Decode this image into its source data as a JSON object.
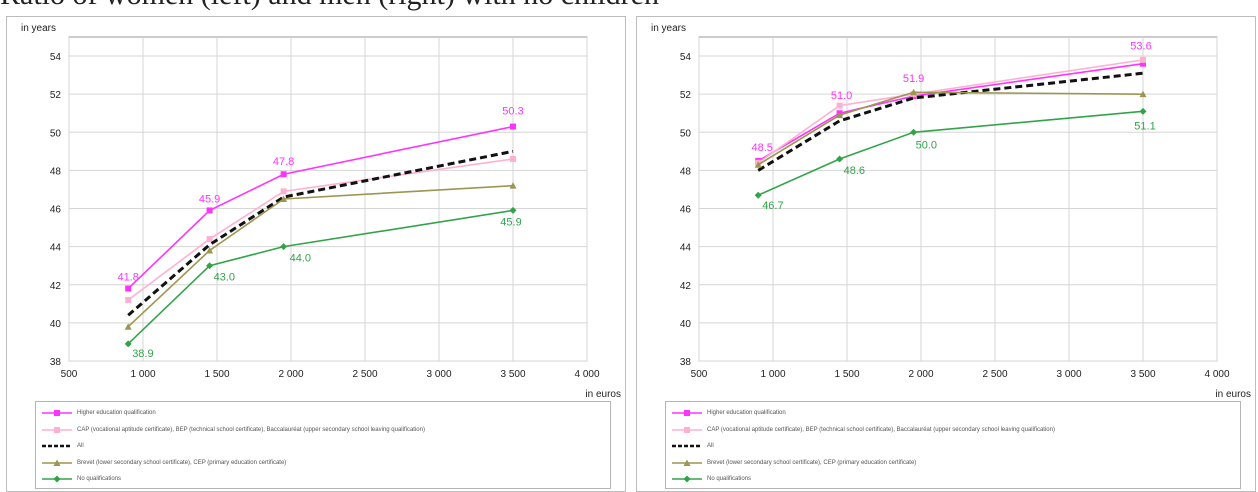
{
  "caption": "Ratio of women (left) and men (right) with no children",
  "legend_entries": [
    {
      "name": "Higher education qualification",
      "color": "#ff33ff",
      "dash": false,
      "marker": "square"
    },
    {
      "name": "CAP (vocational aptitude certificate), BEP (technical school certificate), Baccalauréat (upper secondary school leaving qualification)",
      "color": "#ffb0d0",
      "dash": false,
      "marker": "square"
    },
    {
      "name": "All",
      "color": "#111111",
      "dash": true,
      "marker": "none"
    },
    {
      "name": "Brevet (lower secondary school certificate), CEP (primary education certificate)",
      "color": "#9c9650",
      "dash": false,
      "marker": "triangle"
    },
    {
      "name": "No qualifications",
      "color": "#33a34a",
      "dash": false,
      "marker": "diamond"
    }
  ],
  "chart_data": [
    {
      "type": "line",
      "ylabel": "in years",
      "xlabel": "in euros",
      "xlim": [
        500,
        4000
      ],
      "ylim": [
        38,
        55
      ],
      "x_ticks": [
        500,
        1000,
        1500,
        2000,
        2500,
        3000,
        3500,
        4000
      ],
      "x_tick_labels": [
        "500",
        "1 000",
        "1 500",
        "2 000",
        "2 500",
        "3 000",
        "3 500",
        "4 000"
      ],
      "y_ticks": [
        38,
        40,
        42,
        44,
        46,
        48,
        50,
        52,
        54
      ],
      "y_tick_labels": [
        "38",
        "40",
        "42",
        "44",
        "46",
        "48",
        "50",
        "52",
        "54"
      ],
      "grid": true,
      "x": [
        900,
        1450,
        1950,
        3500
      ],
      "series": [
        {
          "name": "Higher education qualification",
          "values": [
            41.8,
            45.9,
            47.8,
            50.3
          ],
          "labels": [
            "41.8",
            "45.9",
            "47.8",
            "50.3"
          ],
          "color": "#ff33ff",
          "dash": false,
          "marker": "square"
        },
        {
          "name": "CAP (vocational aptitude certificate), BEP (technical school certificate), Baccalauréat (upper secondary school leaving qualification)",
          "values": [
            41.2,
            44.4,
            46.9,
            48.6
          ],
          "labels": [],
          "color": "#ffb0d0",
          "dash": false,
          "marker": "square"
        },
        {
          "name": "All",
          "values": [
            40.4,
            44.1,
            46.6,
            49.0
          ],
          "labels": [],
          "color": "#111111",
          "dash": true,
          "marker": "none"
        },
        {
          "name": "Brevet (lower secondary school certificate), CEP (primary education certificate)",
          "values": [
            39.8,
            43.8,
            46.5,
            47.2
          ],
          "labels": [],
          "color": "#9c9650",
          "dash": false,
          "marker": "triangle"
        },
        {
          "name": "No qualifications",
          "values": [
            38.9,
            43.0,
            44.0,
            45.9
          ],
          "labels": [
            "38.9",
            "43.0",
            "44.0",
            "45.9"
          ],
          "color": "#33a34a",
          "dash": false,
          "marker": "diamond"
        }
      ]
    },
    {
      "type": "line",
      "ylabel": "in years",
      "xlabel": "in euros",
      "xlim": [
        500,
        4000
      ],
      "ylim": [
        38,
        55
      ],
      "x_ticks": [
        500,
        1000,
        1500,
        2000,
        2500,
        3000,
        3500,
        4000
      ],
      "x_tick_labels": [
        "500",
        "1 000",
        "1 500",
        "2 000",
        "2 500",
        "3 000",
        "3 500",
        "4 000"
      ],
      "y_ticks": [
        38,
        40,
        42,
        44,
        46,
        48,
        50,
        52,
        54
      ],
      "y_tick_labels": [
        "38",
        "40",
        "42",
        "44",
        "46",
        "48",
        "50",
        "52",
        "54"
      ],
      "grid": true,
      "x": [
        900,
        1450,
        1950,
        3500
      ],
      "series": [
        {
          "name": "Higher education qualification",
          "values": [
            48.5,
            51.0,
            51.9,
            53.6
          ],
          "labels": [
            "48.5",
            "51.0",
            "51.9",
            "53.6"
          ],
          "color": "#ff33ff",
          "dash": false,
          "marker": "square"
        },
        {
          "name": "CAP (vocational aptitude certificate), BEP (technical school certificate), Baccalauréat (upper secondary school leaving qualification)",
          "values": [
            48.4,
            51.4,
            52.0,
            53.8
          ],
          "labels": [],
          "color": "#ffb0d0",
          "dash": false,
          "marker": "square"
        },
        {
          "name": "All",
          "values": [
            48.0,
            50.6,
            51.8,
            53.1
          ],
          "labels": [],
          "color": "#111111",
          "dash": true,
          "marker": "none"
        },
        {
          "name": "Brevet (lower secondary school certificate), CEP (primary education certificate)",
          "values": [
            48.3,
            50.9,
            52.1,
            52.0
          ],
          "labels": [],
          "color": "#9c9650",
          "dash": false,
          "marker": "triangle"
        },
        {
          "name": "No qualifications",
          "values": [
            46.7,
            48.6,
            50.0,
            51.1
          ],
          "labels": [
            "46.7",
            "48.6",
            "50.0",
            "51.1"
          ],
          "color": "#33a34a",
          "dash": false,
          "marker": "diamond"
        }
      ]
    }
  ]
}
